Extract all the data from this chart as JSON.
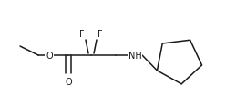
{
  "background": "#ffffff",
  "line_color": "#1a1a1a",
  "line_width": 1.1,
  "figsize": [
    2.48,
    1.16
  ],
  "dpi": 100,
  "text": {
    "O_ester": "O",
    "O_carbonyl": "O",
    "F1": "F",
    "F2": "F",
    "NH": "NH"
  },
  "fontsize": 7.0
}
